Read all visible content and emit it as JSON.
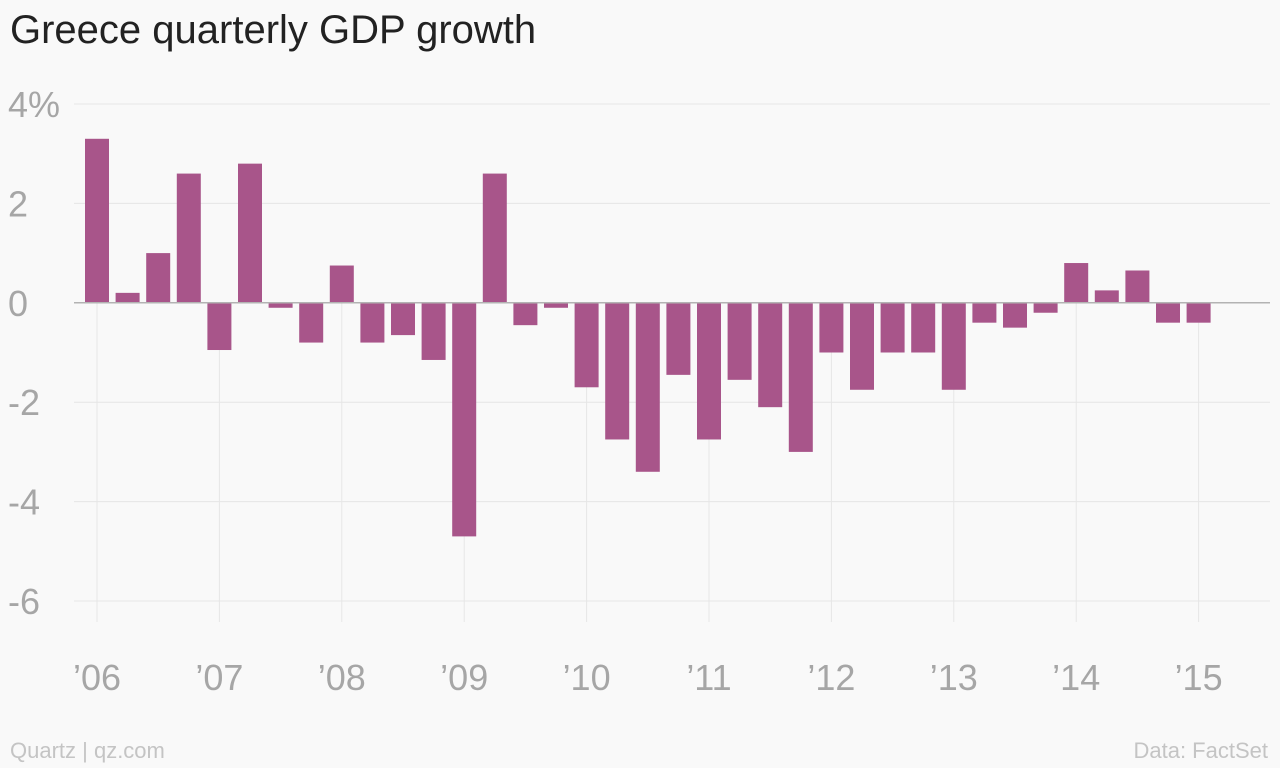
{
  "title": "Greece quarterly GDP growth",
  "footer": {
    "source_left": "Quartz | qz.com",
    "source_right": "Data: FactSet"
  },
  "colors": {
    "bar": "#a8558a",
    "grid": "#e6e6e6",
    "zero_line": "#b3b3b3",
    "tick_text": "#a6a6a6",
    "title_text": "#222222",
    "footer_text": "#c4c4c4",
    "background": "#f9f9f9"
  },
  "chart_data": {
    "type": "bar",
    "title": "Greece quarterly GDP growth",
    "xlabel": "",
    "ylabel": "",
    "ylim": [
      -6,
      4
    ],
    "grid": true,
    "y_ticks": [
      {
        "value": 4,
        "label": "4%"
      },
      {
        "value": 2,
        "label": "2"
      },
      {
        "value": 0,
        "label": "0"
      },
      {
        "value": -2,
        "label": "-2"
      },
      {
        "value": -4,
        "label": "-4"
      },
      {
        "value": -6,
        "label": "-6"
      }
    ],
    "x_ticks": [
      "’06",
      "’07",
      "’08",
      "’09",
      "’10",
      "’11",
      "’12",
      "’13",
      "’14",
      "’15"
    ],
    "categories": [
      "2006 Q1",
      "2006 Q2",
      "2006 Q3",
      "2006 Q4",
      "2007 Q1",
      "2007 Q2",
      "2007 Q3",
      "2007 Q4",
      "2008 Q1",
      "2008 Q2",
      "2008 Q3",
      "2008 Q4",
      "2009 Q1",
      "2009 Q2",
      "2009 Q3",
      "2009 Q4",
      "2010 Q1",
      "2010 Q2",
      "2010 Q3",
      "2010 Q4",
      "2011 Q1",
      "2011 Q2",
      "2011 Q3",
      "2011 Q4",
      "2012 Q1",
      "2012 Q2",
      "2012 Q3",
      "2012 Q4",
      "2013 Q1",
      "2013 Q2",
      "2013 Q3",
      "2013 Q4",
      "2014 Q1",
      "2014 Q2",
      "2014 Q3",
      "2014 Q4",
      "2015 Q1"
    ],
    "values": [
      3.3,
      0.2,
      1.0,
      2.6,
      -0.95,
      2.8,
      -0.1,
      -0.8,
      0.75,
      -0.8,
      -0.65,
      -1.15,
      -4.7,
      2.6,
      -0.45,
      -0.1,
      -1.7,
      -2.75,
      -3.4,
      -1.45,
      -2.75,
      -1.55,
      -2.1,
      -3.0,
      -1.0,
      -1.75,
      -1.0,
      -1.0,
      -1.75,
      -0.4,
      -0.5,
      -0.2,
      0.8,
      0.25,
      0.65,
      -0.4,
      -0.4
    ]
  }
}
